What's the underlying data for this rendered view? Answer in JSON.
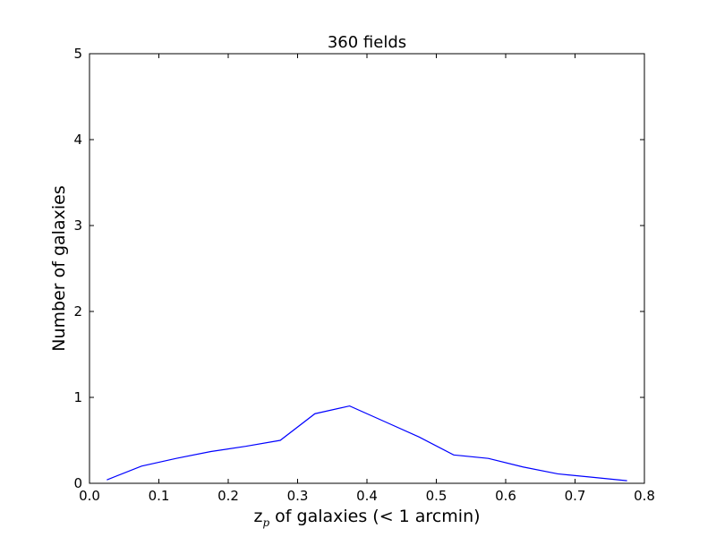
{
  "chart_data": {
    "type": "line",
    "title": "360 fields",
    "xlabel_main": "z",
    "xlabel_sub": "p",
    "xlabel_rest": " of galaxies (< 1 arcmin)",
    "ylabel": "Number of galaxies",
    "xlim": [
      0.0,
      0.8
    ],
    "ylim": [
      0,
      5
    ],
    "xticks": [
      "0.0",
      "0.1",
      "0.2",
      "0.3",
      "0.4",
      "0.5",
      "0.6",
      "0.7",
      "0.8"
    ],
    "yticks": [
      "0",
      "1",
      "2",
      "3",
      "4",
      "5"
    ],
    "grid": false,
    "series": [
      {
        "color": "#0000ff",
        "x": [
          0.025,
          0.075,
          0.125,
          0.175,
          0.225,
          0.275,
          0.325,
          0.375,
          0.425,
          0.475,
          0.525,
          0.575,
          0.625,
          0.675,
          0.725,
          0.775
        ],
        "y": [
          0.04,
          0.2,
          0.29,
          0.37,
          0.43,
          0.5,
          0.81,
          0.9,
          0.72,
          0.54,
          0.33,
          0.29,
          0.19,
          0.11,
          0.07,
          0.03
        ]
      }
    ]
  }
}
